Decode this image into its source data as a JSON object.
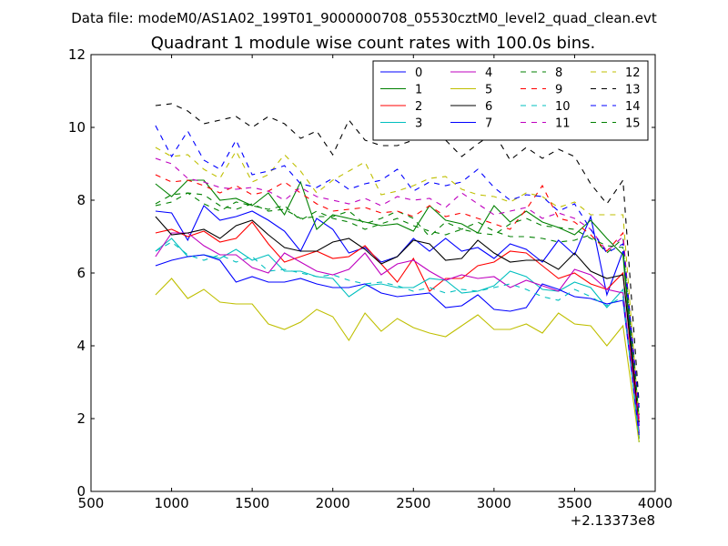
{
  "chart_data": {
    "type": "line",
    "suptitle": "Data file: modeM0/AS1A02_199T01_9000000708_05530cztM0_level2_quad_clean.evt",
    "title": "Quadrant 1 module wise count rates with 100.0s bins.",
    "xlabel": "",
    "ylabel": "",
    "xlim": [
      500,
      4000
    ],
    "ylim": [
      0,
      12
    ],
    "x_offset_label": "+2.13373e8",
    "xticks": [
      500,
      1000,
      1500,
      2000,
      2500,
      3000,
      3500,
      4000
    ],
    "yticks": [
      0,
      2,
      4,
      6,
      8,
      10,
      12
    ],
    "legend_position": "top-right",
    "legend_columns": 4,
    "x": [
      900,
      1000,
      1100,
      1200,
      1300,
      1400,
      1500,
      1600,
      1700,
      1800,
      1900,
      2000,
      2100,
      2200,
      2300,
      2400,
      2500,
      2600,
      2700,
      2800,
      2900,
      3000,
      3100,
      3200,
      3300,
      3400,
      3500,
      3600,
      3700,
      3800,
      3900
    ],
    "series": [
      {
        "name": "0",
        "color": "#0000ff",
        "style": "solid",
        "values": [
          7.7,
          7.65,
          6.9,
          7.85,
          7.45,
          7.55,
          7.7,
          7.45,
          7.15,
          6.6,
          7.5,
          7.2,
          6.55,
          6.7,
          6.3,
          6.45,
          6.95,
          6.6,
          6.95,
          6.6,
          6.7,
          6.4,
          6.8,
          6.65,
          6.3,
          6.9,
          6.5,
          7.55,
          5.4,
          6.6,
          1.8
        ]
      },
      {
        "name": "1",
        "color": "#008000",
        "style": "solid",
        "values": [
          8.45,
          8.1,
          8.55,
          8.55,
          8.0,
          8.05,
          7.85,
          8.2,
          7.6,
          8.5,
          7.2,
          7.6,
          7.5,
          7.4,
          7.3,
          7.35,
          7.15,
          7.85,
          7.45,
          7.35,
          7.1,
          7.85,
          7.4,
          7.7,
          7.4,
          7.25,
          7.05,
          7.45,
          6.95,
          6.5,
          1.45
        ]
      },
      {
        "name": "2",
        "color": "#ff0000",
        "style": "solid",
        "values": [
          7.1,
          7.2,
          7.0,
          7.15,
          6.85,
          6.95,
          7.4,
          6.8,
          6.3,
          6.45,
          6.6,
          6.4,
          6.45,
          6.75,
          6.25,
          5.75,
          6.4,
          5.5,
          5.85,
          5.85,
          6.2,
          6.3,
          6.6,
          6.55,
          6.2,
          5.85,
          6.0,
          5.7,
          5.55,
          6.0,
          1.6
        ]
      },
      {
        "name": "3",
        "color": "#00bfbf",
        "style": "solid",
        "values": [
          6.6,
          6.95,
          6.45,
          6.5,
          6.4,
          6.65,
          6.35,
          6.5,
          6.05,
          6.05,
          5.9,
          5.85,
          5.35,
          5.65,
          5.7,
          5.6,
          5.6,
          5.85,
          5.8,
          5.45,
          5.5,
          5.65,
          6.05,
          5.9,
          5.55,
          5.5,
          5.75,
          5.6,
          5.05,
          5.55,
          1.35
        ]
      },
      {
        "name": "4",
        "color": "#bf00bf",
        "style": "solid",
        "values": [
          6.45,
          7.1,
          7.1,
          6.75,
          6.5,
          6.5,
          6.15,
          6.0,
          6.55,
          6.3,
          6.05,
          5.95,
          6.1,
          6.55,
          5.95,
          6.25,
          6.35,
          6.05,
          5.8,
          5.95,
          5.85,
          5.9,
          5.6,
          5.8,
          5.65,
          5.5,
          6.1,
          5.95,
          5.55,
          5.45,
          1.65
        ]
      },
      {
        "name": "5",
        "color": "#bfbf00",
        "style": "solid",
        "values": [
          5.4,
          5.85,
          5.3,
          5.55,
          5.2,
          5.15,
          5.15,
          4.6,
          4.45,
          4.65,
          5.0,
          4.8,
          4.15,
          4.9,
          4.4,
          4.75,
          4.5,
          4.35,
          4.25,
          4.55,
          4.85,
          4.45,
          4.45,
          4.6,
          4.35,
          4.9,
          4.6,
          4.55,
          4.0,
          4.55,
          1.35
        ]
      },
      {
        "name": "6",
        "color": "#000000",
        "style": "solid",
        "values": [
          7.55,
          7.05,
          7.1,
          7.2,
          6.95,
          7.3,
          7.45,
          7.05,
          6.7,
          6.6,
          6.6,
          6.85,
          6.95,
          6.65,
          6.25,
          6.45,
          6.9,
          6.8,
          6.35,
          6.4,
          6.9,
          6.55,
          6.3,
          6.35,
          6.35,
          6.1,
          6.55,
          6.05,
          5.85,
          5.95,
          1.9
        ]
      },
      {
        "name": "7",
        "color": "#0000ff",
        "style": "solid",
        "values": [
          6.2,
          6.35,
          6.45,
          6.5,
          6.35,
          5.75,
          5.9,
          5.75,
          5.75,
          5.85,
          5.7,
          5.6,
          5.6,
          5.7,
          5.45,
          5.35,
          5.4,
          5.45,
          5.05,
          5.1,
          5.4,
          5.0,
          4.95,
          5.05,
          5.7,
          5.55,
          5.35,
          5.3,
          5.15,
          5.25,
          1.55
        ]
      },
      {
        "name": "8",
        "color": "#008000",
        "style": "dashed",
        "values": [
          7.9,
          8.15,
          8.2,
          8.15,
          7.85,
          7.75,
          7.9,
          7.7,
          7.75,
          7.5,
          7.55,
          7.55,
          7.7,
          7.35,
          7.5,
          7.7,
          7.5,
          7.0,
          7.4,
          7.2,
          7.4,
          7.15,
          7.0,
          7.0,
          6.95,
          6.85,
          6.9,
          7.05,
          6.55,
          6.95,
          2.1
        ]
      },
      {
        "name": "9",
        "color": "#ff0000",
        "style": "dashed",
        "values": [
          8.7,
          8.5,
          8.55,
          8.4,
          8.2,
          8.4,
          8.15,
          8.25,
          8.5,
          8.2,
          7.9,
          7.7,
          7.75,
          7.8,
          7.65,
          7.7,
          7.55,
          7.85,
          7.55,
          7.65,
          7.5,
          7.35,
          7.2,
          7.75,
          8.4,
          7.5,
          7.4,
          7.05,
          6.6,
          7.1,
          1.85
        ]
      },
      {
        "name": "10",
        "color": "#00bfbf",
        "style": "dashed",
        "values": [
          6.6,
          6.85,
          6.5,
          6.35,
          6.5,
          6.3,
          6.45,
          6.05,
          6.1,
          6.0,
          5.9,
          5.95,
          5.8,
          5.7,
          5.75,
          5.65,
          5.5,
          5.6,
          5.45,
          5.55,
          5.5,
          5.6,
          5.7,
          5.55,
          5.35,
          5.25,
          5.55,
          5.35,
          5.1,
          5.35,
          1.5
        ]
      },
      {
        "name": "11",
        "color": "#bf00bf",
        "style": "dashed",
        "values": [
          9.15,
          9.0,
          8.6,
          8.5,
          8.35,
          8.3,
          8.35,
          8.25,
          8.0,
          8.35,
          8.1,
          8.0,
          7.9,
          8.05,
          7.85,
          8.1,
          8.0,
          8.05,
          7.8,
          8.2,
          7.9,
          7.6,
          7.7,
          7.8,
          7.5,
          7.65,
          7.5,
          7.2,
          6.6,
          7.0,
          2.0
        ]
      },
      {
        "name": "12",
        "color": "#bfbf00",
        "style": "dashed",
        "values": [
          9.45,
          9.2,
          9.25,
          8.85,
          8.6,
          9.35,
          8.5,
          8.7,
          9.25,
          8.8,
          8.2,
          8.55,
          8.8,
          9.05,
          8.15,
          8.25,
          8.4,
          8.6,
          8.65,
          8.3,
          8.15,
          8.1,
          7.95,
          8.2,
          8.1,
          7.8,
          7.95,
          7.6,
          7.6,
          7.6,
          1.95
        ]
      },
      {
        "name": "13",
        "color": "#000000",
        "style": "dashed",
        "values": [
          10.6,
          10.65,
          10.45,
          10.1,
          10.2,
          10.3,
          10.0,
          10.3,
          10.1,
          9.7,
          9.9,
          9.25,
          10.2,
          9.65,
          9.5,
          9.5,
          9.65,
          9.8,
          9.65,
          9.2,
          9.55,
          9.85,
          9.1,
          9.45,
          9.15,
          9.4,
          9.2,
          8.45,
          7.9,
          8.55,
          2.4
        ]
      },
      {
        "name": "14",
        "color": "#0000ff",
        "style": "dashed",
        "values": [
          10.05,
          9.2,
          9.9,
          9.1,
          8.85,
          9.65,
          8.7,
          8.8,
          8.95,
          8.45,
          8.35,
          8.6,
          8.3,
          8.45,
          8.55,
          8.85,
          8.25,
          8.5,
          8.4,
          8.5,
          8.85,
          8.35,
          8.0,
          8.15,
          8.1,
          7.7,
          7.9,
          7.2,
          6.55,
          6.8,
          2.3
        ]
      },
      {
        "name": "15",
        "color": "#008000",
        "style": "dashed",
        "values": [
          7.85,
          7.95,
          8.2,
          7.9,
          7.7,
          7.95,
          7.85,
          7.75,
          7.85,
          7.45,
          7.7,
          7.5,
          7.4,
          7.2,
          7.35,
          7.5,
          7.3,
          7.15,
          7.05,
          7.2,
          7.1,
          7.05,
          7.35,
          7.5,
          7.3,
          7.25,
          7.2,
          6.95,
          6.75,
          6.7,
          2.05
        ]
      }
    ]
  }
}
